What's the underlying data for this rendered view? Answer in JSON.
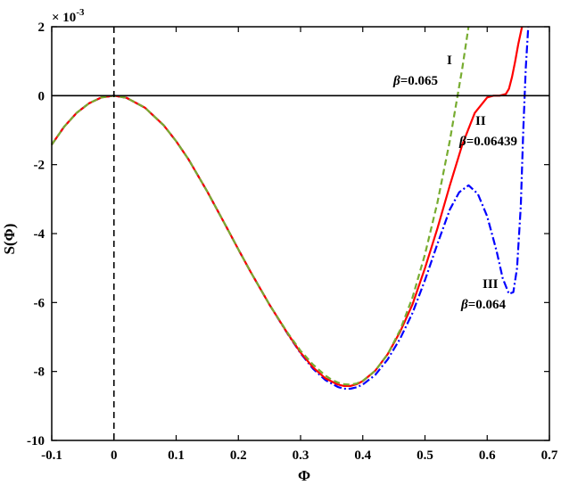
{
  "chart_data": {
    "type": "line",
    "xlabel": "Φ",
    "ylabel": "S(Φ)",
    "y_multiplier_label": "× 10",
    "y_multiplier_exp": "-3",
    "xlim": [
      -0.1,
      0.7
    ],
    "ylim": [
      -10,
      2
    ],
    "x_ticks": [
      -0.1,
      0,
      0.1,
      0.2,
      0.3,
      0.4,
      0.5,
      0.6,
      0.7
    ],
    "x_tick_labels": [
      "-0.1",
      "0",
      "0.1",
      "0.2",
      "0.3",
      "0.4",
      "0.5",
      "0.6",
      "0.7"
    ],
    "y_ticks": [
      2,
      0,
      -2,
      -4,
      -6,
      -8,
      -10
    ],
    "y_tick_labels": [
      "2",
      "0",
      "-2",
      "-4",
      "-6",
      "-8",
      "-10"
    ],
    "reference_lines": [
      {
        "orientation": "horizontal",
        "value": 0,
        "color": "#000000",
        "style": "solid"
      },
      {
        "orientation": "vertical",
        "value": 0,
        "color": "#000000",
        "style": "dashed"
      }
    ],
    "series": [
      {
        "key": "I",
        "color": "#77ac30",
        "style": "dashed",
        "x": [
          -0.1,
          -0.08,
          -0.06,
          -0.04,
          -0.02,
          0,
          0.02,
          0.05,
          0.08,
          0.1,
          0.12,
          0.15,
          0.18,
          0.2,
          0.22,
          0.25,
          0.28,
          0.3,
          0.32,
          0.34,
          0.35,
          0.36,
          0.37,
          0.38,
          0.39,
          0.4,
          0.42,
          0.44,
          0.46,
          0.48,
          0.5,
          0.52,
          0.54,
          0.56,
          0.57
        ],
        "y": [
          -1.42,
          -0.9,
          -0.5,
          -0.22,
          -0.05,
          0,
          -0.06,
          -0.35,
          -0.86,
          -1.32,
          -1.85,
          -2.78,
          -3.78,
          -4.46,
          -5.12,
          -6.06,
          -6.9,
          -7.4,
          -7.8,
          -8.12,
          -8.24,
          -8.32,
          -8.37,
          -8.38,
          -8.35,
          -8.27,
          -7.98,
          -7.5,
          -6.8,
          -5.85,
          -4.6,
          -3.1,
          -1.3,
          0.8,
          2.0
        ]
      },
      {
        "key": "II",
        "color": "#ff0000",
        "style": "solid",
        "x": [
          -0.1,
          -0.08,
          -0.06,
          -0.04,
          -0.02,
          0,
          0.02,
          0.05,
          0.08,
          0.1,
          0.12,
          0.15,
          0.18,
          0.2,
          0.22,
          0.25,
          0.28,
          0.3,
          0.32,
          0.34,
          0.36,
          0.37,
          0.38,
          0.39,
          0.4,
          0.42,
          0.44,
          0.46,
          0.48,
          0.5,
          0.52,
          0.54,
          0.56,
          0.58,
          0.6,
          0.61,
          0.62,
          0.63,
          0.635,
          0.64,
          0.645,
          0.65,
          0.656
        ],
        "y": [
          -1.42,
          -0.9,
          -0.5,
          -0.22,
          -0.05,
          0,
          -0.06,
          -0.35,
          -0.86,
          -1.32,
          -1.85,
          -2.78,
          -3.78,
          -4.46,
          -5.12,
          -6.06,
          -6.92,
          -7.45,
          -7.88,
          -8.2,
          -8.38,
          -8.42,
          -8.42,
          -8.37,
          -8.28,
          -7.98,
          -7.5,
          -6.85,
          -6.05,
          -5.0,
          -3.85,
          -2.6,
          -1.42,
          -0.5,
          -0.05,
          0,
          0,
          0.05,
          0.2,
          0.55,
          1.0,
          1.5,
          2.0
        ]
      },
      {
        "key": "III",
        "color": "#0000ff",
        "style": "dashdot",
        "x": [
          -0.1,
          -0.08,
          -0.06,
          -0.04,
          -0.02,
          0,
          0.02,
          0.05,
          0.08,
          0.1,
          0.12,
          0.15,
          0.18,
          0.2,
          0.22,
          0.25,
          0.28,
          0.3,
          0.32,
          0.34,
          0.36,
          0.37,
          0.38,
          0.39,
          0.4,
          0.42,
          0.44,
          0.46,
          0.48,
          0.5,
          0.52,
          0.54,
          0.555,
          0.57,
          0.585,
          0.6,
          0.615,
          0.625,
          0.635,
          0.642,
          0.648,
          0.654,
          0.658,
          0.662,
          0.666
        ],
        "y": [
          -1.42,
          -0.9,
          -0.5,
          -0.22,
          -0.05,
          0,
          -0.06,
          -0.35,
          -0.86,
          -1.32,
          -1.85,
          -2.78,
          -3.78,
          -4.46,
          -5.12,
          -6.06,
          -6.93,
          -7.47,
          -7.92,
          -8.25,
          -8.45,
          -8.5,
          -8.5,
          -8.46,
          -8.38,
          -8.1,
          -7.65,
          -7.05,
          -6.3,
          -5.35,
          -4.3,
          -3.3,
          -2.8,
          -2.6,
          -2.85,
          -3.5,
          -4.5,
          -5.3,
          -5.75,
          -5.7,
          -5.0,
          -3.2,
          -1.0,
          0.8,
          2.0
        ]
      }
    ],
    "annotations": [
      {
        "for": "I",
        "roman": "I",
        "beta_symbol": "β",
        "beta_text": "=0.065"
      },
      {
        "for": "II",
        "roman": "II",
        "beta_symbol": "β",
        "beta_text": "=0.06439"
      },
      {
        "for": "III",
        "roman": "III",
        "beta_symbol": "β",
        "beta_text": "=0.064"
      }
    ]
  }
}
